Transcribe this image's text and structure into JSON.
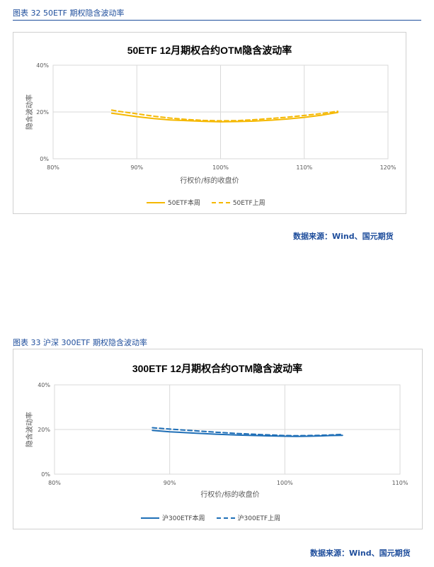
{
  "figures": [
    {
      "caption": "图表 32  50ETF 期权隐含波动率",
      "source": "数据来源：Wind、国元期货",
      "colors": {
        "line": "#f5b800",
        "grid": "#d9d9d9",
        "text": "#595959"
      },
      "chart_data": {
        "type": "line",
        "title": "50ETF  12月期权合约OTM隐含波动率",
        "xlabel": "行权价/标的收盘价",
        "ylabel": "隐含波动率",
        "xlim": [
          80,
          120
        ],
        "ylim": [
          0,
          40
        ],
        "x_ticks": [
          "80%",
          "90%",
          "100%",
          "110%",
          "120%"
        ],
        "y_ticks": [
          "0%",
          "20%",
          "40%"
        ],
        "grid": true,
        "legend_position": "bottom",
        "series": [
          {
            "name": "50ETF本周",
            "style": "solid",
            "x": [
              87,
              88,
              90,
              92,
              94,
              96,
              98,
              100,
              102,
              104,
              106,
              108,
              110,
              112,
              114
            ],
            "y": [
              19.5,
              19.0,
              18.0,
              17.2,
              16.6,
              16.3,
              16.0,
              15.8,
              15.9,
              16.1,
              16.5,
              17.0,
              17.7,
              18.6,
              19.8
            ]
          },
          {
            "name": "50ETF上周",
            "style": "dashed",
            "x": [
              87,
              88,
              90,
              92,
              94,
              96,
              98,
              100,
              102,
              104,
              106,
              108,
              110,
              112,
              114
            ],
            "y": [
              20.8,
              20.2,
              19.2,
              18.2,
              17.4,
              16.8,
              16.4,
              16.2,
              16.3,
              16.7,
              17.2,
              17.8,
              18.5,
              19.3,
              20.3
            ]
          }
        ]
      }
    },
    {
      "caption": "图表 33  沪深 300ETF 期权隐含波动率",
      "source": "数据来源：Wind、国元期货",
      "colors": {
        "line": "#1f6fb7",
        "grid": "#d9d9d9",
        "text": "#595959"
      },
      "chart_data": {
        "type": "line",
        "title": "300ETF  12月期权合约OTM隐含波动率",
        "xlabel": "行权价/标的收盘价",
        "ylabel": "隐含波动率",
        "xlim": [
          80,
          110
        ],
        "ylim": [
          0,
          40
        ],
        "x_ticks": [
          "80%",
          "90%",
          "100%",
          "110%"
        ],
        "y_ticks": [
          "0%",
          "20%",
          "40%"
        ],
        "grid": true,
        "legend_position": "bottom",
        "series": [
          {
            "name": "沪300ETF本周",
            "style": "solid",
            "x": [
              88.5,
              90,
              92,
              94,
              96,
              98,
              100,
              101,
              102,
              103,
              104,
              105
            ],
            "y": [
              19.6,
              19.0,
              18.4,
              17.9,
              17.5,
              17.2,
              17.0,
              16.9,
              17.0,
              17.1,
              17.3,
              17.4
            ]
          },
          {
            "name": "沪300ETF上周",
            "style": "dashed",
            "x": [
              88.5,
              90,
              92,
              94,
              96,
              98,
              100,
              101,
              102,
              103,
              104,
              105
            ],
            "y": [
              20.8,
              20.2,
              19.5,
              18.8,
              18.2,
              17.7,
              17.3,
              17.2,
              17.3,
              17.4,
              17.6,
              17.8
            ]
          }
        ]
      }
    }
  ]
}
